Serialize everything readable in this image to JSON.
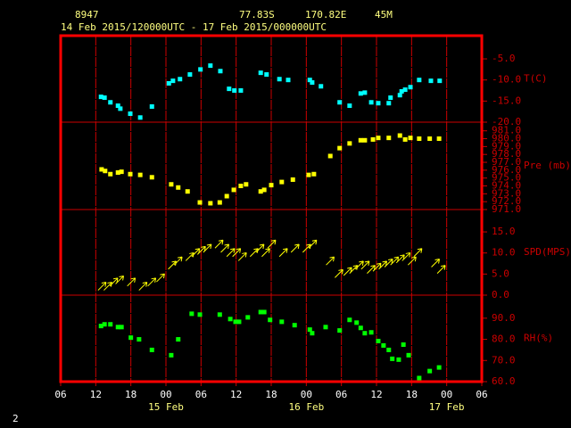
{
  "header": {
    "station": "8947",
    "lat": "77.83S",
    "lon": "170.82E",
    "elev": "45M",
    "period": "14 Feb 2015/120000UTC - 17 Feb 2015/000000UTC",
    "page": "2"
  },
  "x_axis": {
    "xlim": [
      0,
      72
    ],
    "xticks": [
      {
        "value": 0,
        "label": "06"
      },
      {
        "value": 6,
        "label": "12"
      },
      {
        "value": 12,
        "label": "18"
      },
      {
        "value": 18,
        "label": "00"
      },
      {
        "value": 24,
        "label": "06"
      },
      {
        "value": 30,
        "label": "12"
      },
      {
        "value": 36,
        "label": "18"
      },
      {
        "value": 42,
        "label": "00"
      },
      {
        "value": 48,
        "label": "06"
      },
      {
        "value": 54,
        "label": "12"
      },
      {
        "value": 60,
        "label": "18"
      },
      {
        "value": 66,
        "label": "00"
      },
      {
        "value": 72,
        "label": "06"
      }
    ],
    "dates": [
      {
        "value": 18,
        "label": "15 Feb"
      },
      {
        "value": 42,
        "label": "16 Feb"
      },
      {
        "value": 66,
        "label": "17 Feb"
      }
    ]
  },
  "chart_data": [
    {
      "type": "scatter",
      "ylabel": "T(C)",
      "color": "#00ffff",
      "ylim": [
        -20,
        0.5
      ],
      "yticks": [
        {
          "value": -5,
          "label": "-5.0"
        },
        {
          "value": -10,
          "label": "-10.0"
        },
        {
          "value": -15,
          "label": "-15.0"
        },
        {
          "value": -20,
          "label": "-20.0"
        }
      ],
      "x": [
        6.9,
        7.5,
        8.5,
        9.8,
        10.2,
        11.9,
        13.6,
        15.6,
        18.5,
        19.2,
        20.4,
        22.1,
        23.9,
        25.6,
        27.3,
        28.8,
        29.7,
        30.8,
        34.2,
        35.2,
        37.4,
        38.9,
        42.6,
        43.0,
        44.5,
        47.7,
        49.4,
        51.3,
        52.0,
        53.1,
        54.3,
        56.1,
        56.4,
        58.0,
        58.3,
        58.9,
        59.8,
        61.3,
        63.3,
        64.8
      ],
      "values": [
        -14.0,
        -14.2,
        -15.3,
        -16.1,
        -16.8,
        -18.0,
        -18.9,
        -16.3,
        -10.8,
        -10.2,
        -9.8,
        -8.7,
        -7.5,
        -6.6,
        -7.9,
        -12.1,
        -12.5,
        -12.5,
        -8.3,
        -8.7,
        -9.8,
        -10.0,
        -10.0,
        -10.6,
        -11.5,
        -15.3,
        -16.1,
        -13.2,
        -13.0,
        -15.3,
        -15.5,
        -15.5,
        -14.2,
        -13.6,
        -12.7,
        -12.3,
        -11.7,
        -10.0,
        -10.2,
        -10.2
      ]
    },
    {
      "type": "scatter",
      "ylabel": "Pre (mb)",
      "color": "#ffff00",
      "ylim": [
        971,
        982.1
      ],
      "yticks": [
        {
          "value": 971,
          "label": "971.0"
        },
        {
          "value": 972,
          "label": "972.0"
        },
        {
          "value": 973,
          "label": "973.0"
        },
        {
          "value": 974,
          "label": "974.0"
        },
        {
          "value": 975,
          "label": "975.0"
        },
        {
          "value": 976,
          "label": "976.0"
        },
        {
          "value": 977,
          "label": "977.0"
        },
        {
          "value": 978,
          "label": "978.0"
        },
        {
          "value": 979,
          "label": "979.0"
        },
        {
          "value": 980,
          "label": "980.0"
        },
        {
          "value": 981,
          "label": "981.0"
        }
      ],
      "x": [
        7,
        7.6,
        8.5,
        9.8,
        10.4,
        11.9,
        13.6,
        15.6,
        18.9,
        20.1,
        21.7,
        23.8,
        25.6,
        27.2,
        28.4,
        29.6,
        30.8,
        31.7,
        34.2,
        34.8,
        36.0,
        37.8,
        39.7,
        42.4,
        43.3,
        46.1,
        47.7,
        49.4,
        51.3,
        52.0,
        53.4,
        54.3,
        56.1,
        58.0,
        58.9,
        59.8,
        61.3,
        63.1,
        64.7
      ],
      "values": [
        976.1,
        975.9,
        975.5,
        975.7,
        975.8,
        975.5,
        975.4,
        975.1,
        974.2,
        973.8,
        973.3,
        971.9,
        971.8,
        971.9,
        972.7,
        973.5,
        974.0,
        974.2,
        973.3,
        973.5,
        974.1,
        974.5,
        974.8,
        975.4,
        975.5,
        977.8,
        978.8,
        979.4,
        979.8,
        979.8,
        979.9,
        980.1,
        980.1,
        980.4,
        979.9,
        980.1,
        980.0,
        980.0,
        980.0
      ]
    },
    {
      "type": "wind",
      "ylabel": "SPD(MPS)",
      "color": "#ffff00",
      "ylim": [
        0,
        20.3
      ],
      "yticks": [
        {
          "value": 0,
          "label": "0.0"
        },
        {
          "value": 5,
          "label": "5.0"
        },
        {
          "value": 10,
          "label": "10.0"
        },
        {
          "value": 15,
          "label": "15.0"
        }
      ],
      "x": [
        7,
        8,
        9,
        10,
        12,
        14,
        15.5,
        17,
        19,
        20,
        22,
        23,
        24,
        25,
        27,
        28,
        29,
        30,
        31,
        33,
        34,
        35,
        36,
        38,
        40,
        42,
        43,
        46,
        47.5,
        49,
        50,
        51,
        52,
        53,
        54,
        55,
        56,
        57,
        58,
        59,
        60,
        61,
        64,
        65
      ],
      "values": [
        2,
        2,
        3,
        3.5,
        3,
        2,
        3,
        4,
        7,
        8,
        9,
        10,
        10.5,
        11,
        12,
        11,
        10,
        10,
        9,
        10,
        11,
        10,
        12,
        10,
        11,
        11,
        12,
        8,
        5,
        5.5,
        6,
        7,
        7,
        6,
        6.5,
        7,
        7.5,
        8,
        8.5,
        9,
        8,
        10,
        7.5,
        6
      ]
    },
    {
      "type": "scatter",
      "ylabel": "RH(%)",
      "color": "#00ff00",
      "ylim": [
        60,
        100.9
      ],
      "yticks": [
        {
          "value": 60,
          "label": "60.0"
        },
        {
          "value": 70,
          "label": "70.0"
        },
        {
          "value": 80,
          "label": "80.0"
        },
        {
          "value": 90,
          "label": "90.0"
        }
      ],
      "x": [
        6.9,
        7.5,
        8.5,
        9.8,
        10.4,
        12,
        13.4,
        15.6,
        18.9,
        20.1,
        22.4,
        23.8,
        27.2,
        29,
        29.9,
        30.5,
        32,
        34.2,
        34.8,
        35.8,
        37.8,
        40,
        42.6,
        43,
        45.3,
        47.7,
        49.4,
        50.6,
        51.3,
        52,
        53.1,
        54.3,
        55.2,
        56.1,
        56.7,
        57.8,
        58.6,
        59.5,
        61.3,
        63.1,
        64.7
      ],
      "values": [
        86.3,
        87.1,
        87.1,
        85.8,
        85.8,
        80.8,
        80,
        75,
        72.5,
        80,
        92.1,
        91.7,
        91.7,
        89.6,
        88.3,
        88.3,
        90.4,
        92.9,
        92.9,
        89.2,
        88.3,
        86.7,
        84.6,
        82.9,
        85.8,
        84.2,
        89.2,
        87.9,
        85.4,
        82.9,
        83.3,
        79.2,
        77.1,
        75,
        70.8,
        70.4,
        77.5,
        72.5,
        61.7,
        65,
        66.7
      ]
    }
  ]
}
